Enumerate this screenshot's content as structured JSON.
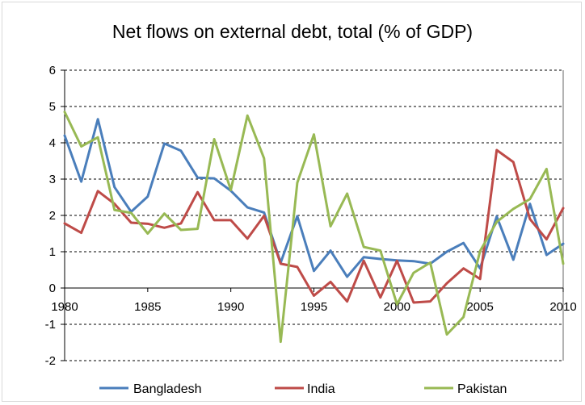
{
  "chart_data": {
    "type": "line",
    "title": "Net flows on external debt, total (% of GDP)",
    "xlabel": "",
    "ylabel": "",
    "x": [
      1980,
      1981,
      1982,
      1983,
      1984,
      1985,
      1986,
      1987,
      1988,
      1989,
      1990,
      1991,
      1992,
      1993,
      1994,
      1995,
      1996,
      1997,
      1998,
      1999,
      2000,
      2001,
      2002,
      2003,
      2004,
      2005,
      2006,
      2007,
      2008,
      2009,
      2010
    ],
    "xlim": [
      1980,
      2010
    ],
    "ylim": [
      -2,
      6
    ],
    "x_ticks": [
      "1980",
      "1985",
      "1990",
      "1995",
      "2000",
      "2005",
      "2010"
    ],
    "y_ticks": [
      "6",
      "5",
      "4",
      "3",
      "2",
      "1",
      "0",
      "-1",
      "-2"
    ],
    "grid": "horizontal dashed",
    "legend_position": "bottom",
    "series": [
      {
        "name": "Bangladesh",
        "color": "#4a7ebb",
        "values": [
          4.2,
          2.93,
          4.65,
          2.78,
          2.1,
          2.52,
          3.98,
          3.78,
          3.04,
          3.02,
          2.68,
          2.22,
          2.08,
          0.7,
          1.98,
          0.47,
          1.03,
          0.31,
          0.85,
          0.8,
          0.76,
          0.74,
          0.67,
          1.0,
          1.24,
          0.54,
          1.97,
          0.78,
          2.32,
          0.91,
          1.22
        ]
      },
      {
        "name": "India",
        "color": "#be4b48",
        "values": [
          1.78,
          1.52,
          2.67,
          2.32,
          1.8,
          1.77,
          1.66,
          1.78,
          2.64,
          1.87,
          1.87,
          1.36,
          1.99,
          0.67,
          0.58,
          -0.21,
          0.17,
          -0.37,
          0.75,
          -0.26,
          0.75,
          -0.4,
          -0.37,
          0.13,
          0.54,
          0.25,
          3.8,
          3.47,
          1.9,
          1.34,
          2.2
        ]
      },
      {
        "name": "Pakistan",
        "color": "#98b954",
        "values": [
          4.85,
          3.9,
          4.15,
          2.15,
          2.07,
          1.5,
          2.05,
          1.6,
          1.63,
          4.1,
          2.7,
          4.75,
          3.57,
          -1.48,
          2.9,
          4.23,
          1.7,
          2.6,
          1.13,
          1.03,
          -0.45,
          0.42,
          0.7,
          -1.28,
          -0.8,
          1.02,
          1.82,
          2.18,
          2.45,
          3.28,
          0.67
        ]
      }
    ]
  }
}
